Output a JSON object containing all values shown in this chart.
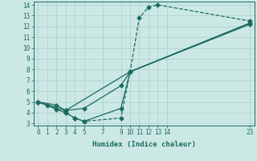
{
  "title": "",
  "xlabel": "Humidex (Indice chaleur)",
  "ylabel": "",
  "bg_color": "#cce8e5",
  "grid_color": "#aacfcc",
  "line_color": "#1a6b61",
  "xlim": [
    -0.5,
    23.5
  ],
  "ylim": [
    2.8,
    14.3
  ],
  "xticks": [
    0,
    1,
    2,
    3,
    4,
    5,
    7,
    9,
    10,
    11,
    12,
    13,
    14,
    23
  ],
  "yticks": [
    3,
    4,
    5,
    6,
    7,
    8,
    9,
    10,
    11,
    12,
    13,
    14
  ],
  "lines": [
    {
      "x": [
        0,
        1,
        2,
        3,
        4,
        5,
        9,
        10,
        11,
        12,
        13,
        23
      ],
      "y": [
        5,
        4.7,
        4.3,
        4.0,
        3.5,
        3.2,
        3.5,
        7.8,
        12.8,
        13.8,
        14.0,
        12.5
      ],
      "style": "--"
    },
    {
      "x": [
        0,
        2,
        3,
        5,
        9,
        10,
        23
      ],
      "y": [
        5,
        4.7,
        4.2,
        4.4,
        6.5,
        7.8,
        12.3
      ],
      "style": "-"
    },
    {
      "x": [
        0,
        3,
        10,
        23
      ],
      "y": [
        5,
        4.2,
        7.8,
        12.2
      ],
      "style": "-"
    },
    {
      "x": [
        0,
        3,
        4,
        5,
        9,
        10,
        23
      ],
      "y": [
        5,
        4.0,
        3.5,
        3.2,
        4.4,
        7.8,
        12.3
      ],
      "style": "-"
    }
  ]
}
